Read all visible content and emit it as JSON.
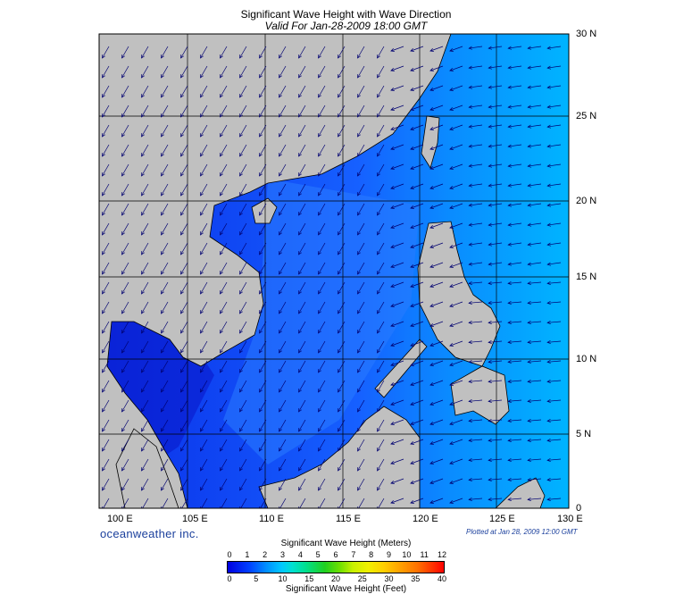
{
  "title": "Significant Wave Height with Wave Direction",
  "subtitle": "Valid For Jan-28-2009 18:00 GMT",
  "brand": "oceanweather inc.",
  "plotted": "Plotted at Jan 28, 2009 12:00 GMT",
  "lon_labels": [
    "100 E",
    "105 E",
    "110 E",
    "115 E",
    "120 E",
    "125 E",
    "130 E"
  ],
  "lat_labels": [
    "30 N",
    "25 N",
    "20 N",
    "15 N",
    "10 N",
    "5 N",
    "0"
  ],
  "colorbar": {
    "title_meters": "Significant Wave Height (Meters)",
    "title_feet": "Significant Wave Height (Feet)",
    "meter_ticks": [
      "0",
      "1",
      "2",
      "3",
      "4",
      "5",
      "6",
      "7",
      "8",
      "9",
      "10",
      "11",
      "12"
    ],
    "feet_ticks": [
      "0",
      "5",
      "10",
      "15",
      "20",
      "25",
      "30",
      "35",
      "40"
    ]
  },
  "colors": {
    "land": "#c0c0c0",
    "ocean_deep": "#0a2ee8",
    "ocean_mid": "#1a6cff",
    "ocean_light": "#00b4ff",
    "arrow": "#000070"
  }
}
